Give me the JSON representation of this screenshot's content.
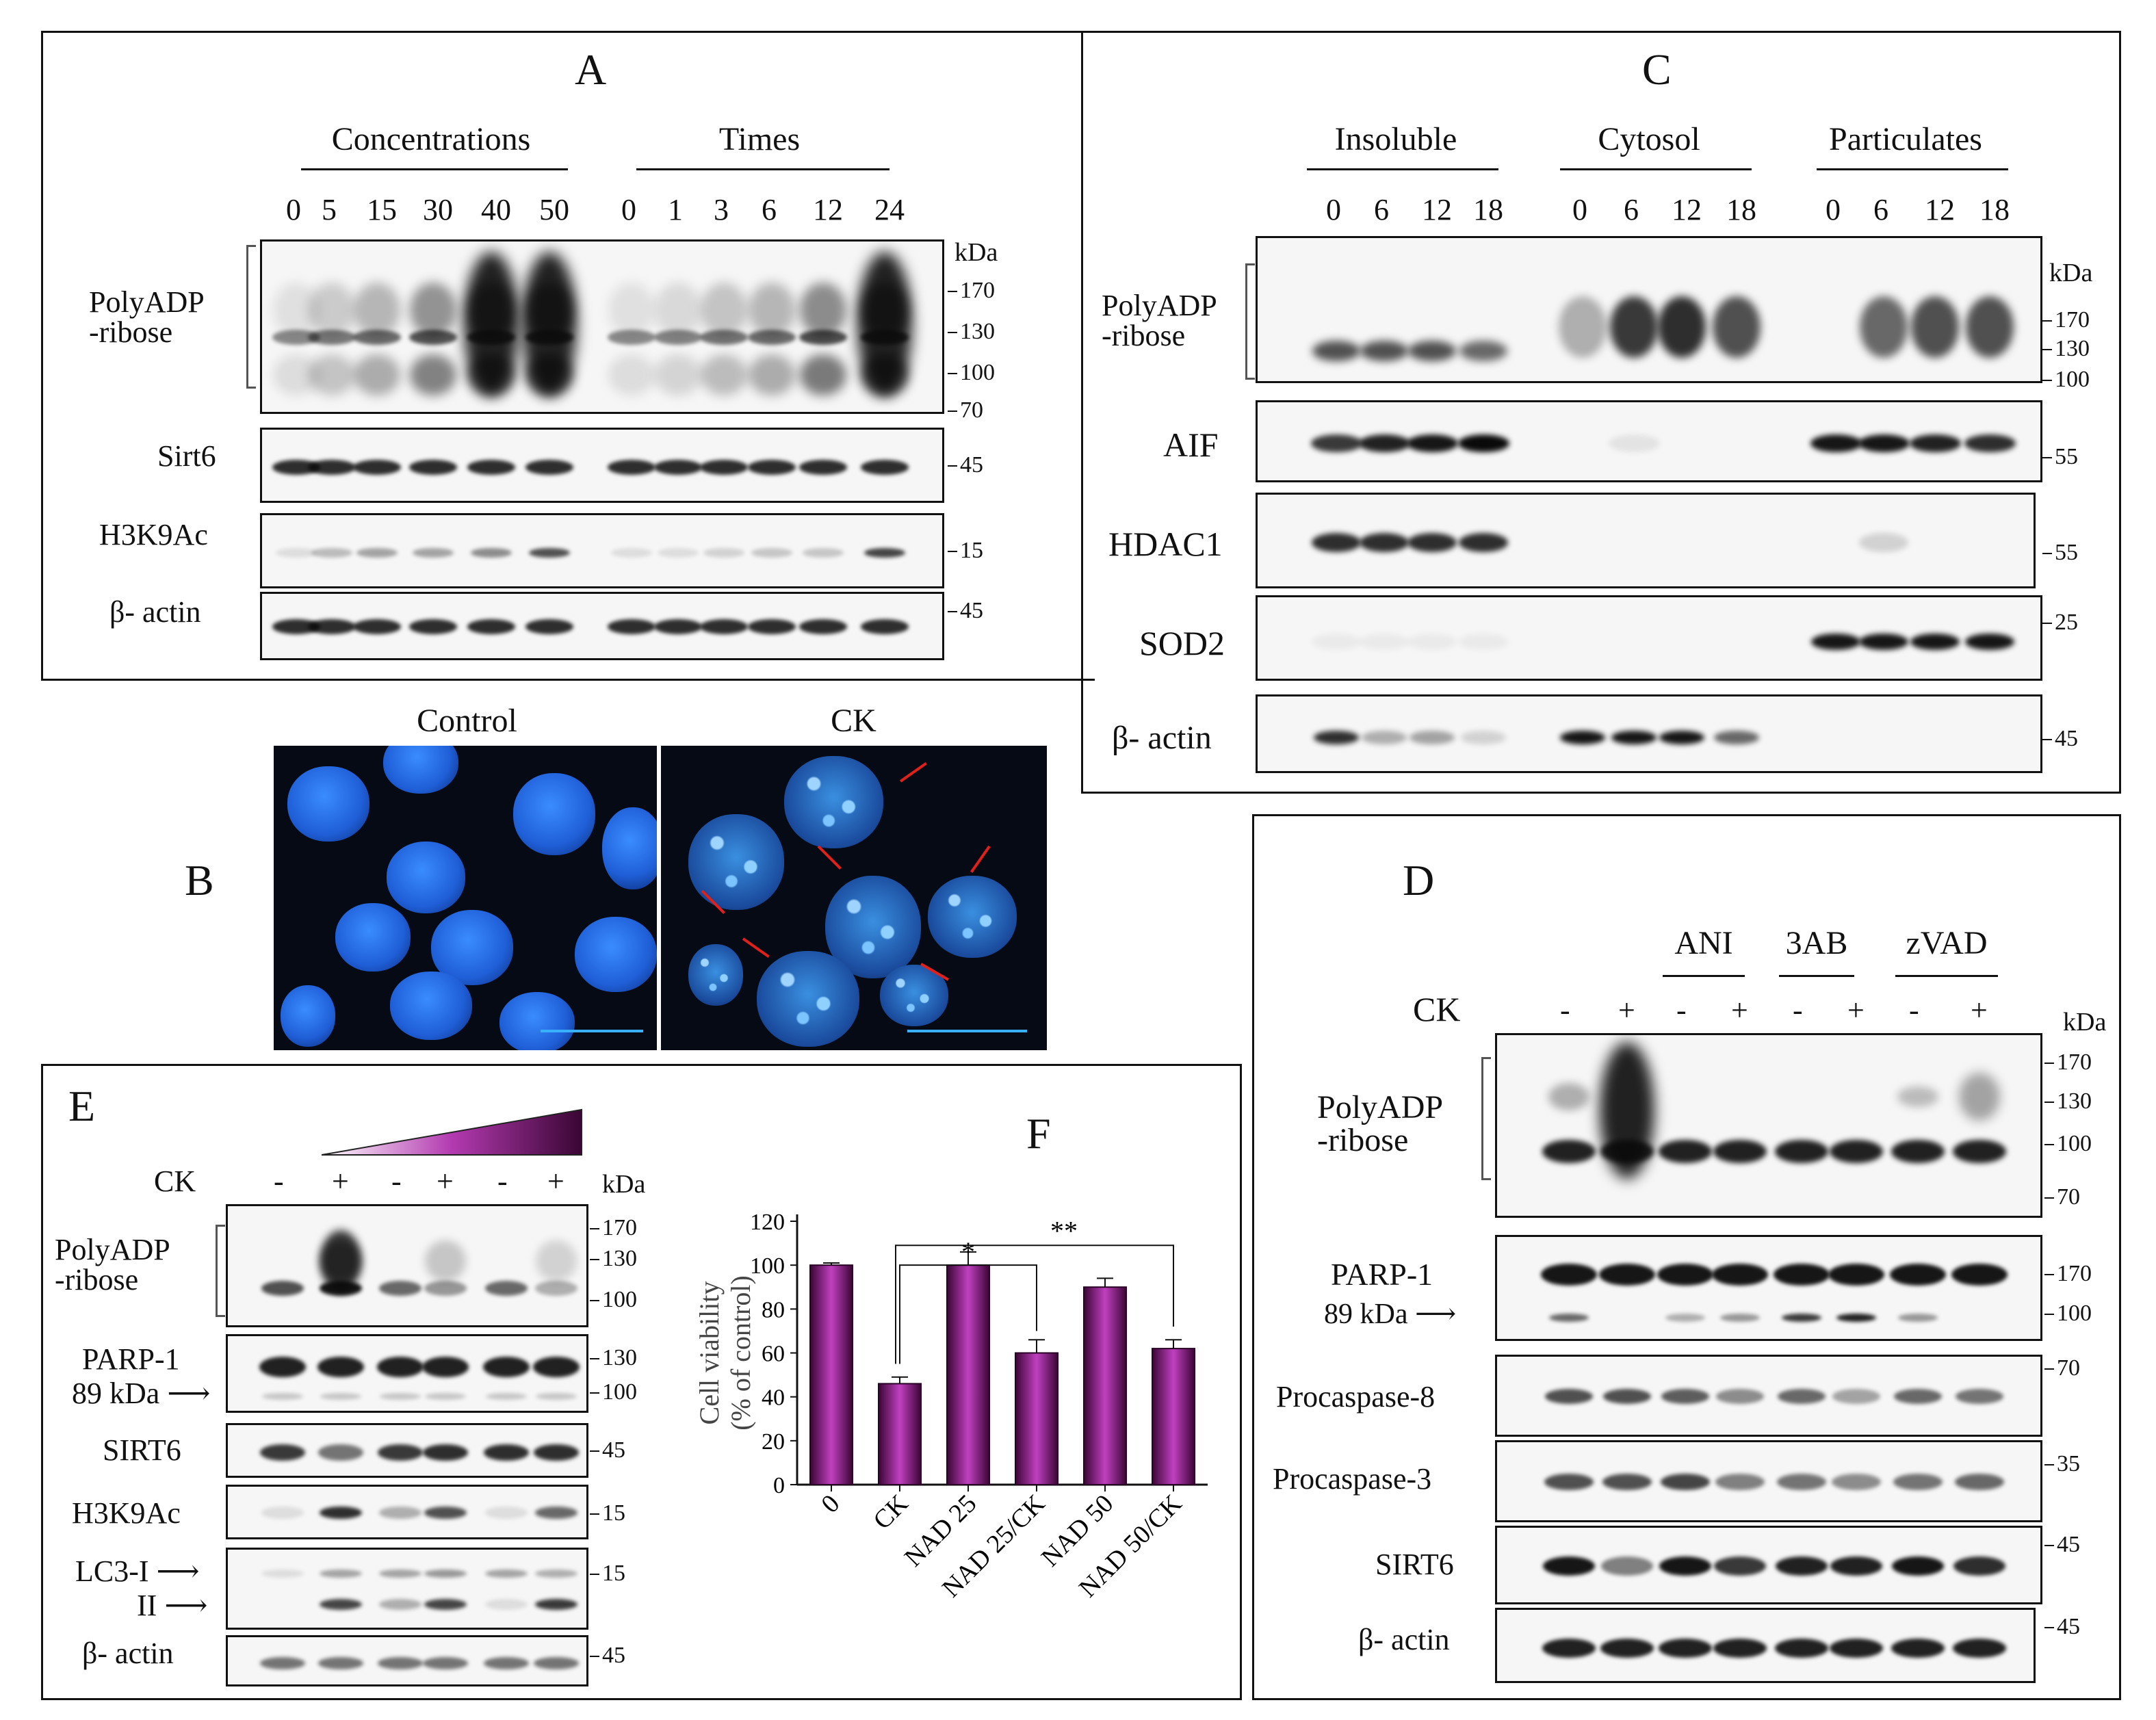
{
  "panelA": {
    "label": "A",
    "group1": "Concentrations",
    "group2": "Times",
    "lanes": [
      "0",
      "5",
      "15",
      "30",
      "40",
      "50",
      "0",
      "1",
      "3",
      "6",
      "12",
      "24"
    ],
    "kda": "kDa",
    "rows": [
      "PolyADP\n-ribose",
      "Sirt6",
      "H3K9Ac",
      "β- actin"
    ],
    "markers": {
      "r1": [
        "170",
        "130",
        "100",
        "70"
      ],
      "r2": "45",
      "r3": "15",
      "r4": "45"
    }
  },
  "panelC": {
    "label": "C",
    "groups": [
      "Insoluble",
      "Cytosol",
      "Particulates"
    ],
    "lanes": [
      "0",
      "6",
      "12",
      "18",
      "0",
      "6",
      "12",
      "18",
      "0",
      "6",
      "12",
      "18"
    ],
    "kda": "kDa",
    "rows": [
      "PolyADP\n-ribose",
      "AIF",
      "HDAC1",
      "SOD2",
      "β- actin"
    ],
    "markers": {
      "r1": [
        "170",
        "130",
        "100"
      ],
      "r2": "55",
      "r3": "55",
      "r4": "25",
      "r5": "45"
    }
  },
  "panelB": {
    "label": "B",
    "left_title": "Control",
    "right_title": "CK"
  },
  "panelD": {
    "label": "D",
    "groups": [
      "ANI",
      "3AB",
      "zVAD"
    ],
    "ck_label": "CK",
    "signs": [
      "-",
      "+",
      "-",
      "+",
      "-",
      "+",
      "-",
      "+"
    ],
    "kda": "kDa",
    "rows": [
      "PolyADP\n-ribose",
      "PARP-1",
      "Procaspase-8",
      "Procaspase-3",
      "SIRT6",
      "β- actin"
    ],
    "cleaved": "89 kDa",
    "markers": {
      "r1": [
        "170",
        "130",
        "100",
        "70"
      ],
      "r2": [
        "170",
        "100"
      ],
      "r3": "70",
      "r4": "35",
      "r5": "45",
      "r6": "45"
    }
  },
  "panelE": {
    "label": "E",
    "ck_label": "CK",
    "signs": [
      "-",
      "+",
      "-",
      "+",
      "-",
      "+"
    ],
    "kda": "kDa",
    "rows": [
      "PolyADP\n-ribose",
      "PARP-1",
      "SIRT6",
      "H3K9Ac",
      "LC3-I",
      "II",
      "β- actin"
    ],
    "cleaved": "89 kDa",
    "markers": {
      "r1": [
        "170",
        "130",
        "100"
      ],
      "r2": [
        "130",
        "100"
      ],
      "r3": "45",
      "r4": "15",
      "r5": "15",
      "r6": "45"
    }
  },
  "panelF": {
    "label": "F",
    "chart_data": {
      "type": "bar",
      "categories": [
        "0",
        "CK",
        "NAD 25",
        "NAD 25/CK",
        "NAD 50",
        "NAD 50/CK"
      ],
      "values": [
        100,
        46,
        100,
        60,
        90,
        62
      ],
      "errors": [
        1,
        3,
        6,
        6,
        4,
        4
      ],
      "ylabel": "Cell viability\n(% of control)",
      "yticks": [
        "0",
        "20",
        "40",
        "60",
        "80",
        "100",
        "120"
      ],
      "ylim": [
        0,
        120
      ],
      "significance": [
        "*",
        "**"
      ],
      "bar_color": "#7a1a78"
    }
  }
}
